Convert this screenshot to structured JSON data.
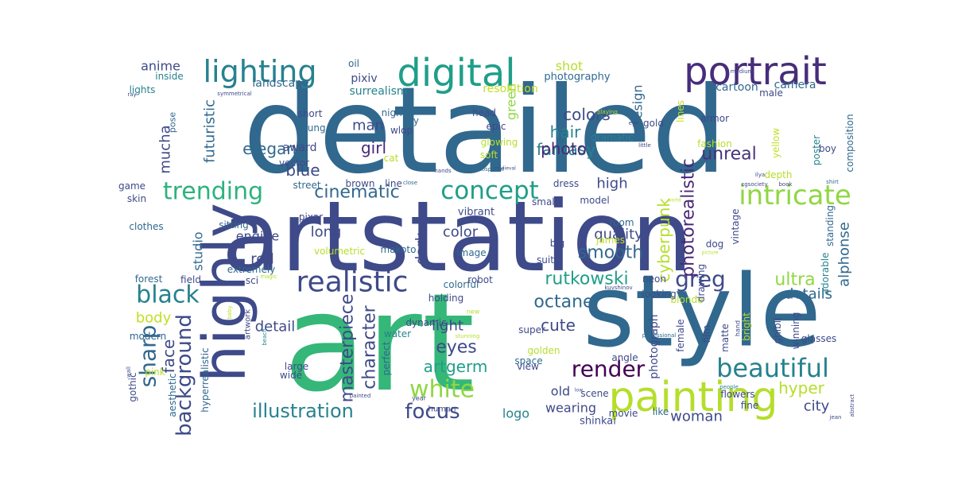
{
  "cloud": {
    "words": [
      {
        "text": "detailed",
        "color": "#31688e"
      },
      {
        "text": "artstation",
        "color": "#3e4a89"
      },
      {
        "text": "art",
        "color": "#35b779"
      },
      {
        "text": "style",
        "color": "#31688e"
      },
      {
        "text": "painting",
        "color": "#b5de2b"
      },
      {
        "text": "digital",
        "color": "#1f9e89"
      },
      {
        "text": "portrait",
        "color": "#472d7b"
      },
      {
        "text": "highly",
        "color": "#3e4a89"
      },
      {
        "text": "lighting",
        "color": "#26828e"
      },
      {
        "text": "realistic",
        "color": "#3e4a89"
      },
      {
        "text": "intricate",
        "color": "#90d743"
      },
      {
        "text": "concept",
        "color": "#1f9e89"
      },
      {
        "text": "trending",
        "color": "#2db27d"
      },
      {
        "text": "beautiful",
        "color": "#26828e"
      },
      {
        "text": "white",
        "color": "#90d743"
      },
      {
        "text": "black",
        "color": "#26828e"
      },
      {
        "text": "focus",
        "color": "#3e4a89"
      },
      {
        "text": "illustration",
        "color": "#26828e"
      },
      {
        "text": "render",
        "color": "#440154"
      },
      {
        "text": "sharp",
        "color": "#31688e"
      },
      {
        "text": "greg",
        "color": "#3e4a89"
      },
      {
        "text": "rutkowski",
        "color": "#1f9e89"
      },
      {
        "text": "cinematic",
        "color": "#31688e"
      },
      {
        "text": "background",
        "color": "#3e4a89"
      },
      {
        "text": "unreal",
        "color": "#46327e"
      },
      {
        "text": "fantasy",
        "color": "#26828e"
      },
      {
        "text": "photorealistic",
        "color": "#482878"
      },
      {
        "text": "smooth",
        "color": "#31688e"
      },
      {
        "text": "ultra",
        "color": "#90d743"
      },
      {
        "text": "character",
        "color": "#3e4a89"
      },
      {
        "text": "masterpiece",
        "color": "#3e4a89"
      },
      {
        "text": "cyberpunk",
        "color": "#b5de2b"
      },
      {
        "text": "elegant",
        "color": "#31688e"
      },
      {
        "text": "eyes",
        "color": "#3e4a89"
      },
      {
        "text": "hyper",
        "color": "#b5de2b"
      },
      {
        "text": "octane",
        "color": "#31688e"
      },
      {
        "text": "artgerm",
        "color": "#1f9e89"
      },
      {
        "text": "colors",
        "color": "#3e4a89"
      },
      {
        "text": "blue",
        "color": "#3e4a89"
      },
      {
        "text": "photo",
        "color": "#482878"
      },
      {
        "text": "hair",
        "color": "#26828e"
      },
      {
        "text": "cute",
        "color": "#3e4a89"
      },
      {
        "text": "girl",
        "color": "#482878"
      },
      {
        "text": "city",
        "color": "#3e4a89"
      },
      {
        "text": "man",
        "color": "#3e4a89"
      },
      {
        "text": "woman",
        "color": "#3e4a89"
      },
      {
        "text": "face",
        "color": "#3e4a89"
      },
      {
        "text": "mucha",
        "color": "#3e4a89"
      },
      {
        "text": "anime",
        "color": "#3e4a89"
      },
      {
        "text": "light",
        "color": "#3e4a89"
      },
      {
        "text": "details",
        "color": "#31688e"
      },
      {
        "text": "color",
        "color": "#3e4a89"
      },
      {
        "text": "dark",
        "color": "#3e4a89"
      },
      {
        "text": "detail",
        "color": "#3e4a89"
      },
      {
        "text": "quality",
        "color": "#3e4a89"
      },
      {
        "text": "alphonse",
        "color": "#31688e"
      },
      {
        "text": "high",
        "color": "#3e4a89"
      },
      {
        "text": "body",
        "color": "#c2df23"
      },
      {
        "text": "futuristic",
        "color": "#31688e"
      },
      {
        "text": "long",
        "color": "#3e4a89"
      },
      {
        "text": "red",
        "color": "#3e4a89"
      },
      {
        "text": "studio",
        "color": "#31688e"
      },
      {
        "text": "engine",
        "color": "#3e4a89"
      },
      {
        "text": "design",
        "color": "#31688e"
      },
      {
        "text": "shot",
        "color": "#b5de2b"
      },
      {
        "text": "logo",
        "color": "#26828e"
      },
      {
        "text": "wearing",
        "color": "#3e4a89"
      },
      {
        "text": "old",
        "color": "#3e4a89"
      },
      {
        "text": "green",
        "color": "#90d743"
      },
      {
        "text": "photograph",
        "color": "#3e4a89"
      },
      {
        "text": "dynamic",
        "color": "#3e4a89"
      },
      {
        "text": "shinkai",
        "color": "#3e4a89"
      },
      {
        "text": "makoto",
        "color": "#31688e"
      },
      {
        "text": "vibrant",
        "color": "#3e4a89"
      },
      {
        "text": "colorful",
        "color": "#31688e"
      },
      {
        "text": "landscape",
        "color": "#31688e"
      },
      {
        "text": "award",
        "color": "#3e4a89"
      },
      {
        "text": "pixiv",
        "color": "#3e4a89"
      },
      {
        "text": "surrealism",
        "color": "#26828e"
      },
      {
        "text": "resolution",
        "color": "#c2df23"
      },
      {
        "text": "photography",
        "color": "#31688e"
      },
      {
        "text": "cartoon",
        "color": "#31688e"
      },
      {
        "text": "male",
        "color": "#3e4a89"
      },
      {
        "text": "camera",
        "color": "#31688e"
      },
      {
        "text": "armor",
        "color": "#3e4a89"
      },
      {
        "text": "poster",
        "color": "#26828e"
      },
      {
        "text": "boy",
        "color": "#3e4a89"
      },
      {
        "text": "fashion",
        "color": "#b5de2b"
      },
      {
        "text": "gold",
        "color": "#3e4a89"
      },
      {
        "text": "lines",
        "color": "#c2df23"
      },
      {
        "text": "yellow",
        "color": "#c2df23"
      },
      {
        "text": "composition",
        "color": "#31688e"
      },
      {
        "text": "head",
        "color": "#3e4a89"
      },
      {
        "text": "epic",
        "color": "#3e4a89"
      },
      {
        "text": "glowing",
        "color": "#b5de2b"
      },
      {
        "text": "soft",
        "color": "#b5de2b"
      },
      {
        "text": "dramatic",
        "color": "#26828e"
      },
      {
        "text": "night",
        "color": "#31688e"
      },
      {
        "text": "sky",
        "color": "#31688e"
      },
      {
        "text": "short",
        "color": "#3e4a89"
      },
      {
        "text": "young",
        "color": "#31688e"
      },
      {
        "text": "vector",
        "color": "#3e4a89"
      },
      {
        "text": "street",
        "color": "#31688e"
      },
      {
        "text": "brown",
        "color": "#3e4a89"
      },
      {
        "text": "line",
        "color": "#3e4a89"
      },
      {
        "text": "cat",
        "color": "#b5de2b"
      },
      {
        "text": "dress",
        "color": "#3e4a89"
      },
      {
        "text": "small",
        "color": "#3e4a89"
      },
      {
        "text": "pixar",
        "color": "#3e4a89"
      },
      {
        "text": "sitting",
        "color": "#31688e"
      },
      {
        "text": "volumetric",
        "color": "#b5de2b"
      },
      {
        "text": "extremely",
        "color": "#31688e"
      },
      {
        "text": "sci",
        "color": "#3e4a89"
      },
      {
        "text": "field",
        "color": "#3e4a89"
      },
      {
        "text": "forest",
        "color": "#31688e"
      },
      {
        "text": "clothes",
        "color": "#31688e"
      },
      {
        "text": "skin",
        "color": "#3e4a89"
      },
      {
        "text": "game",
        "color": "#3e4a89"
      },
      {
        "text": "modern",
        "color": "#31688e"
      },
      {
        "text": "pink",
        "color": "#b5de2b"
      },
      {
        "text": "gothic",
        "color": "#3e4a89"
      },
      {
        "text": "aesthetic",
        "color": "#31688e"
      },
      {
        "text": "hyperrealistic",
        "color": "#31688e"
      },
      {
        "text": "artwork",
        "color": "#3e4a89"
      },
      {
        "text": "large",
        "color": "#3e4a89"
      },
      {
        "text": "wide",
        "color": "#3e4a89"
      },
      {
        "text": "perfect",
        "color": "#31688e"
      },
      {
        "text": "human",
        "color": "#3e4a89"
      },
      {
        "text": "water",
        "color": "#26828e"
      },
      {
        "text": "holding",
        "color": "#3e4a89"
      },
      {
        "text": "robot",
        "color": "#3e4a89"
      },
      {
        "text": "image",
        "color": "#31688e"
      },
      {
        "text": "big",
        "color": "#3e4a89"
      },
      {
        "text": "suit",
        "color": "#3e4a89"
      },
      {
        "text": "room",
        "color": "#31688e"
      },
      {
        "text": "james",
        "color": "#c2df23"
      },
      {
        "text": "vintage",
        "color": "#3e4a89"
      },
      {
        "text": "dog",
        "color": "#3e4a89"
      },
      {
        "text": "standing",
        "color": "#31688e"
      },
      {
        "text": "adorable",
        "color": "#26828e"
      },
      {
        "text": "blonde",
        "color": "#b5de2b"
      },
      {
        "text": "neon",
        "color": "#3e4a89"
      },
      {
        "text": "looking",
        "color": "#3e4a89"
      },
      {
        "text": "angle",
        "color": "#3e4a89"
      },
      {
        "text": "super",
        "color": "#3e4a89"
      },
      {
        "text": "golden",
        "color": "#b5de2b"
      },
      {
        "text": "view",
        "color": "#3e4a89"
      },
      {
        "text": "space",
        "color": "#31688e"
      },
      {
        "text": "scene",
        "color": "#3e4a89"
      },
      {
        "text": "flowers",
        "color": "#3e4a89"
      },
      {
        "text": "movie",
        "color": "#3e4a89"
      },
      {
        "text": "like",
        "color": "#31688e"
      },
      {
        "text": "fine",
        "color": "#3e4a89"
      },
      {
        "text": "matte",
        "color": "#3e4a89"
      },
      {
        "text": "film",
        "color": "#3e4a89"
      },
      {
        "text": "female",
        "color": "#3e4a89"
      },
      {
        "text": "drawing",
        "color": "#3e4a89"
      },
      {
        "text": "bright",
        "color": "#b5de2b"
      },
      {
        "text": "ghibli",
        "color": "#3e4a89"
      },
      {
        "text": "winning",
        "color": "#3e4a89"
      },
      {
        "text": "glasses",
        "color": "#3e4a89"
      },
      {
        "text": "depth",
        "color": "#b5de2b"
      },
      {
        "text": "model",
        "color": "#3e4a89"
      },
      {
        "text": "oil",
        "color": "#31688e"
      },
      {
        "text": "lights",
        "color": "#26828e"
      },
      {
        "text": "inside",
        "color": "#26828e"
      },
      {
        "text": "wlop",
        "color": "#3e4a89"
      },
      {
        "text": "pose",
        "color": "#31688e"
      },
      {
        "text": "playing",
        "color": "#b5de2b"
      },
      {
        "text": "eye",
        "color": "#3e4a89"
      },
      {
        "text": "little",
        "color": "#3e4a89"
      },
      {
        "text": "hands",
        "color": "#3e4a89"
      },
      {
        "text": "medieval",
        "color": "#3e4a89"
      },
      {
        "text": "atmosphere",
        "color": "#31688e"
      },
      {
        "text": "close",
        "color": "#31688e"
      },
      {
        "text": "world",
        "color": "#b5de2b"
      },
      {
        "text": "cgsociety",
        "color": "#3e4a89"
      },
      {
        "text": "book",
        "color": "#3e4a89"
      },
      {
        "text": "shirt",
        "color": "#31688e"
      },
      {
        "text": "kuvshinov",
        "color": "#3e4a89"
      },
      {
        "text": "ilya",
        "color": "#3e4a89"
      },
      {
        "text": "picture",
        "color": "#b5de2b"
      },
      {
        "text": "magic",
        "color": "#b5de2b"
      },
      {
        "text": "symmetrical",
        "color": "#3e4a89"
      },
      {
        "text": "medium",
        "color": "#3e4a89"
      },
      {
        "text": "ray",
        "color": "#3e4a89"
      },
      {
        "text": "new",
        "color": "#b5de2b"
      },
      {
        "text": "beach",
        "color": "#26828e"
      },
      {
        "text": "baby",
        "color": "#b5de2b"
      },
      {
        "text": "wall",
        "color": "#3e4a89"
      },
      {
        "text": "stunning",
        "color": "#b5de2b"
      },
      {
        "text": "painted",
        "color": "#3e4a89"
      },
      {
        "text": "year",
        "color": "#3e4a89"
      },
      {
        "text": "professional",
        "color": "#31688e"
      },
      {
        "text": "hand",
        "color": "#3e4a89"
      },
      {
        "text": "people",
        "color": "#26828e"
      },
      {
        "text": "low",
        "color": "#3e4a89"
      },
      {
        "text": "jean",
        "color": "#3e4a89"
      },
      {
        "text": "abstract",
        "color": "#3e4a89"
      },
      {
        "text": "cover",
        "color": "#3e4a89"
      }
    ]
  }
}
